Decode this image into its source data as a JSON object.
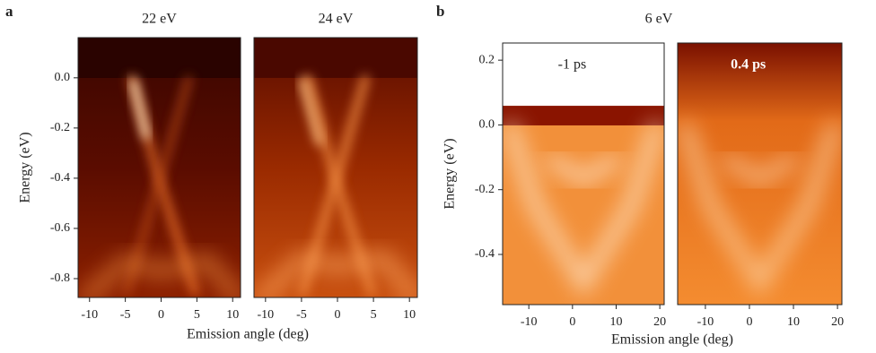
{
  "chart_data": [
    {
      "type": "image",
      "panel_label": "a",
      "title": "22 eV",
      "y_label": "Energy (eV)",
      "x_label": "Emission angle (deg)",
      "xlim": [
        -11.6,
        11.1
      ],
      "xticks": [
        -10,
        -5,
        0,
        5,
        10
      ],
      "ylim": [
        -0.875,
        0.16
      ],
      "yticks": [
        {
          "value": 0,
          "label": "0.0"
        },
        -0.2,
        -0.4,
        -0.6,
        -0.8
      ]
    },
    {
      "type": "image",
      "title": "24 eV",
      "xlim": [
        -11.6,
        11.1
      ],
      "xticks": [
        -10,
        -5,
        0,
        5,
        10
      ],
      "ylim": [
        -0.875,
        0.16
      ]
    },
    {
      "type": "image",
      "panel_label": "b",
      "group_title": "6 eV",
      "annotation": "-1 ps",
      "y_label": "Energy (eV)",
      "x_label": "Emission angle (deg)",
      "xlim": [
        -16,
        21
      ],
      "xticks": [
        -10,
        0,
        10,
        20
      ],
      "ylim": [
        -0.555,
        0.253
      ],
      "yticks": [
        0.2,
        {
          "value": 0,
          "label": "0.0"
        },
        -0.2,
        -0.4
      ]
    },
    {
      "type": "image",
      "annotation": "0.4 ps",
      "xlim": [
        -16.3,
        21
      ],
      "xticks": [
        -10,
        0,
        10,
        20
      ],
      "ylim": [
        -0.555,
        0.253
      ]
    }
  ]
}
